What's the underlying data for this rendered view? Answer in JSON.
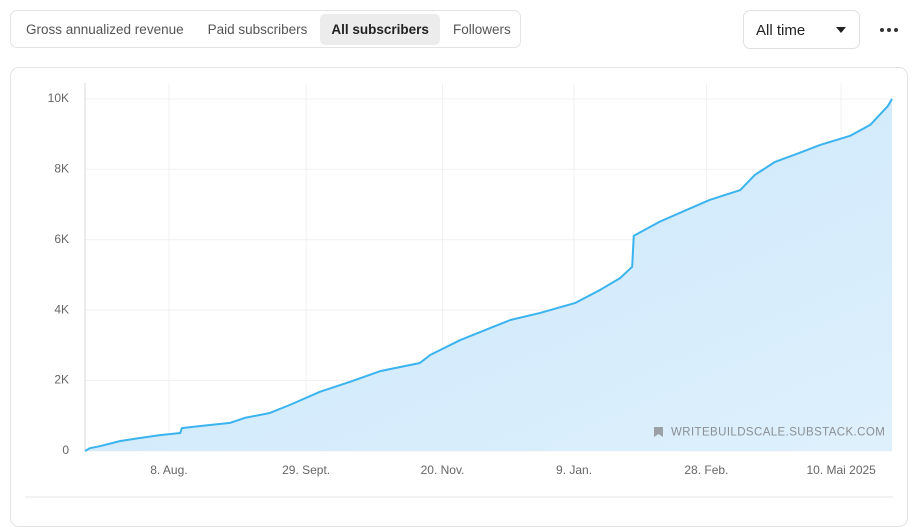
{
  "tabs": [
    "Gross annualized revenue",
    "Paid subscribers",
    "All subscribers",
    "Followers"
  ],
  "range_select": "All time",
  "watermark": "WRITEBUILDSCALE.SUBSTACK.COM",
  "chart_data": {
    "type": "area",
    "x": [
      0,
      0.6,
      1.9,
      4.3,
      6.8,
      9.3,
      11.8,
      12.0,
      14.3,
      18.0,
      19.8,
      22.9,
      25.4,
      29.1,
      32.8,
      36.6,
      41.5,
      42.8,
      46.5,
      50.2,
      52.7,
      56.4,
      60.7,
      63.8,
      66.3,
      67.8,
      68.0,
      71.2,
      74.9,
      77.4,
      81.2,
      83.0,
      85.5,
      88.6,
      91.1,
      94.8,
      97.3,
      99.5,
      100
    ],
    "series": [
      {
        "color": "#3bb3ee",
        "values": [
          0,
          80,
          140,
          280,
          370,
          450,
          510,
          650,
          710,
          800,
          940,
          1080,
          1310,
          1680,
          1960,
          2270,
          2500,
          2730,
          3150,
          3490,
          3720,
          3920,
          4200,
          4570,
          4910,
          5230,
          6110,
          6510,
          6880,
          7130,
          7410,
          7840,
          8210,
          8470,
          8690,
          8950,
          9260,
          9800,
          10000
        ]
      }
    ],
    "xlim": [
      0,
      100
    ],
    "xticks": [
      {
        "value": 10.4,
        "label": "8. Aug."
      },
      {
        "value": 27.4,
        "label": "29. Sept."
      },
      {
        "value": 44.3,
        "label": "20. Nov."
      },
      {
        "value": 60.6,
        "label": "9. Jan."
      },
      {
        "value": 77.0,
        "label": "28. Feb."
      },
      {
        "value": 93.7,
        "label": "10. Mai 2025"
      }
    ],
    "ylim": [
      0,
      10450
    ],
    "yticks": [
      0,
      {
        "value": 2000,
        "label": "2K"
      },
      {
        "value": 4000,
        "label": "4K"
      },
      {
        "value": 6000,
        "label": "6K"
      },
      {
        "value": 8000,
        "label": "8K"
      },
      {
        "value": 10000,
        "label": "10K"
      }
    ],
    "grid": true
  }
}
